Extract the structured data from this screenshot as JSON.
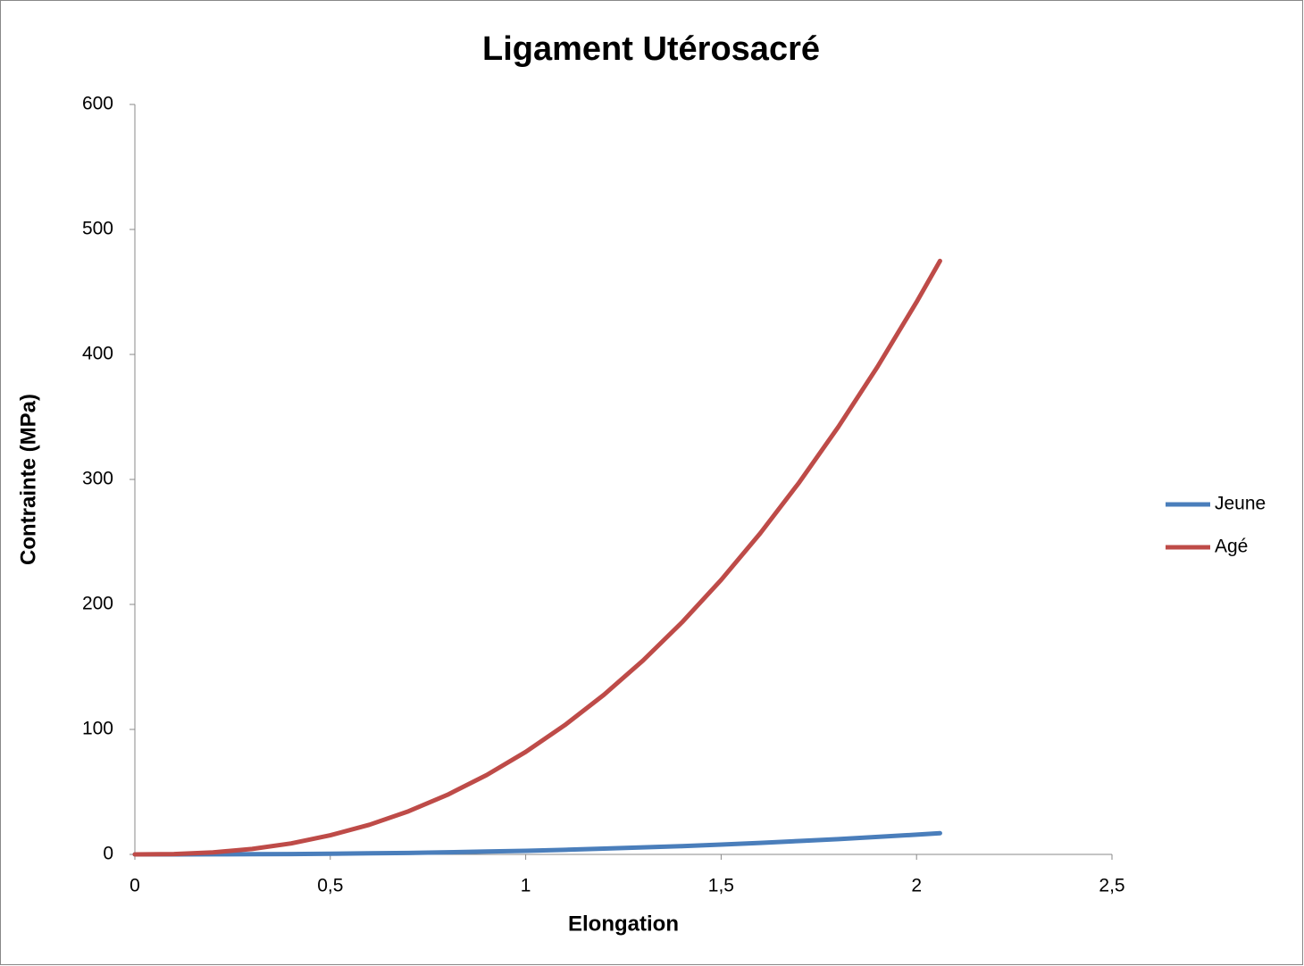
{
  "chart_data": {
    "type": "line",
    "title": "Ligament Utérosacré",
    "x_label": "Elongation",
    "y_label": "Contrainte (MPa)",
    "x": [
      0,
      0.1,
      0.2,
      0.3,
      0.4,
      0.5,
      0.6,
      0.7,
      0.8,
      0.9,
      1.0,
      1.1,
      1.2,
      1.3,
      1.4,
      1.5,
      1.6,
      1.7,
      1.8,
      1.9,
      2.0,
      2.06
    ],
    "series": [
      {
        "name": "Jeune",
        "color": "#4a7ebb",
        "values": [
          0,
          0.01,
          0.06,
          0.16,
          0.31,
          0.55,
          0.85,
          1.2,
          1.7,
          2.3,
          2.9,
          3.7,
          4.6,
          5.6,
          6.6,
          7.9,
          9.2,
          10.7,
          12.2,
          14.0,
          15.8,
          17.0
        ]
      },
      {
        "name": "Agé",
        "color": "#be4b48",
        "values": [
          0,
          0.3,
          1.6,
          4.4,
          8.8,
          15.3,
          23.7,
          34.5,
          47.7,
          63.5,
          82,
          103.4,
          127.7,
          155.1,
          185.7,
          219.6,
          256.9,
          297.7,
          342.1,
          390.1,
          441.9,
          474.8
        ]
      }
    ],
    "xlim": [
      0,
      2.5
    ],
    "xticks": [
      0,
      {
        "value": 0.5,
        "label": "0,5"
      },
      1,
      {
        "value": 1.5,
        "label": "1,5"
      },
      2,
      {
        "value": 2.5,
        "label": "2,5"
      }
    ],
    "ylim": [
      0,
      600
    ],
    "yticks": [
      0,
      100,
      200,
      300,
      400,
      500,
      600
    ],
    "grid": false,
    "legend": "right"
  }
}
